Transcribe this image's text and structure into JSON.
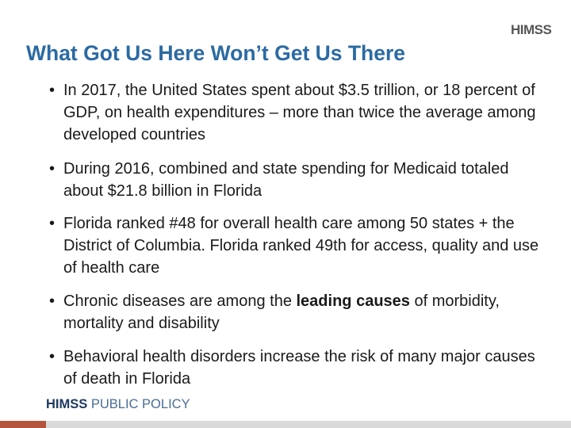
{
  "header": {
    "logo": "HIMSS",
    "title": "What Got Us Here Won’t Get Us There"
  },
  "bullets": [
    {
      "parts": [
        "In 2017, the United States spent about $3.5 trillion, or 18 percent of GDP, on health expenditures – more than twice the average among developed countries"
      ]
    },
    {
      "parts": [
        "During 2016, combined and state spending for Medicaid totaled about $21.8 billion in Florida"
      ]
    },
    {
      "parts": [
        "Florida ranked #48 for overall health care among 50 states + the District of Columbia. Florida ranked 49th for access, quality and use of health care"
      ]
    },
    {
      "parts": [
        "Chronic diseases are among the ",
        "leading causes",
        " of morbidity, mortality and disability"
      ]
    },
    {
      "parts": [
        "Behavioral health disorders increase the risk of many major causes of death in Florida"
      ]
    }
  ],
  "footer": {
    "brand": "HIMSS",
    "label": "PUBLIC POLICY"
  }
}
